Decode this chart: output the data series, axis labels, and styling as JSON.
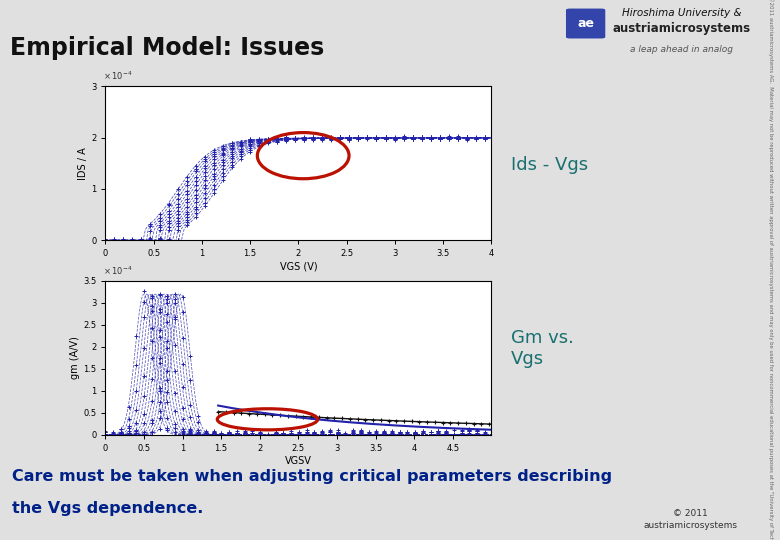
{
  "title": "Empirical Model: Issues",
  "bg_color": "#e0e0e0",
  "plot_bg": "#ffffff",
  "header_bg": "#c8c8c8",
  "header_text_color": "#111111",
  "label_color": "#1a7070",
  "footer_text_line1": "Care must be taken when adjusting critical parameters describing",
  "footer_text_line2": "the Vgs dependence.",
  "footer_color": "#002288",
  "ids_label": "Ids - Vgs",
  "gm_label": "Gm vs.\nVgs",
  "copyright": "© 2011\naustriamicrosystems",
  "curve_color": "#2222aa",
  "black_color": "#111111",
  "ellipse_color": "#bb1100",
  "ids_xlabel": "VGS (V)",
  "ids_ylabel": "IDS / A",
  "gm_xlabel": "VGSV",
  "gm_ylabel": "gm (A/V)",
  "num_vth_curves": 14,
  "vth_ids_min": 0.4,
  "vth_ids_max": 0.8,
  "vth_gm_min": 0.3,
  "vth_gm_max": 0.78,
  "logo_text1": "Hiroshima University &",
  "logo_text2": "austriamicrosystems",
  "logo_text3": "a leap ahead in analog"
}
